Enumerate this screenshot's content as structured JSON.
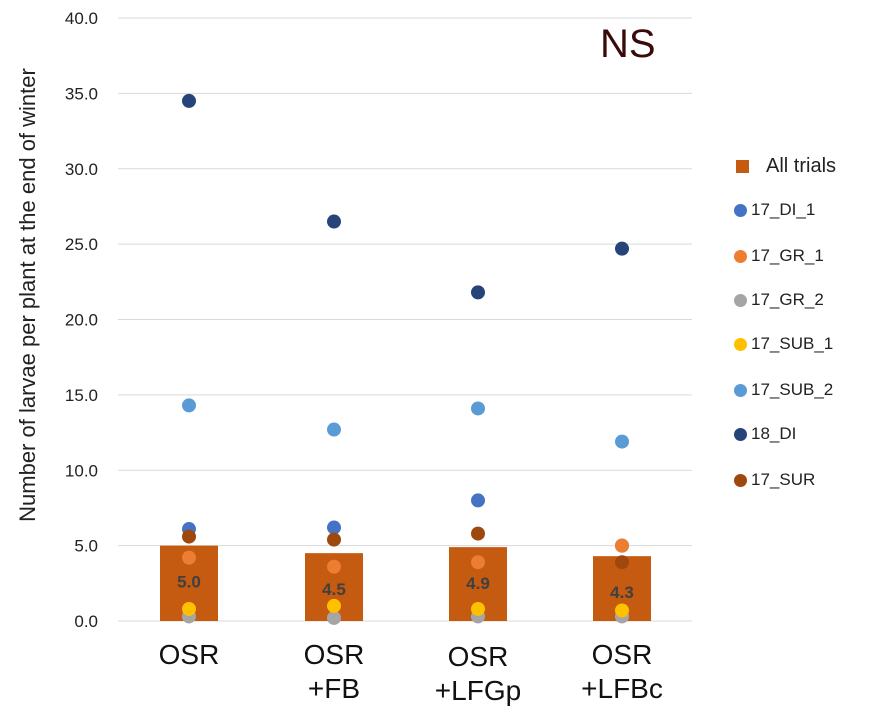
{
  "chart_data": {
    "type": "bar",
    "title": "",
    "annotation": "NS",
    "ylabel": "Number of larvae per plant at the end of winter",
    "ylim": [
      0,
      40
    ],
    "yticks": [
      "0.0",
      "5.0",
      "10.0",
      "15.0",
      "20.0",
      "25.0",
      "30.0",
      "35.0",
      "40.0"
    ],
    "grid": true,
    "legend_position": "right",
    "categories": [
      {
        "line1": "OSR",
        "line2": ""
      },
      {
        "line1": "OSR",
        "line2": "+FB"
      },
      {
        "line1": "OSR",
        "line2": "+LFGp"
      },
      {
        "line1": "OSR",
        "line2": "+LFBc"
      }
    ],
    "bar_series": {
      "name": "All trials",
      "color": "#c55a11",
      "values": [
        5.0,
        4.5,
        4.9,
        4.3
      ],
      "labels": [
        "5.0",
        "4.5",
        "4.9",
        "4.3"
      ]
    },
    "point_series": [
      {
        "name": "17_DI_1",
        "color": "#4472c4",
        "values": [
          6.1,
          6.2,
          8.0,
          5.0
        ]
      },
      {
        "name": "17_GR_1",
        "color": "#ed7d31",
        "values": [
          4.2,
          3.6,
          3.9,
          5.0
        ]
      },
      {
        "name": "17_GR_2",
        "color": "#a5a5a5",
        "values": [
          0.3,
          0.2,
          0.3,
          0.3
        ]
      },
      {
        "name": "17_SUB_1",
        "color": "#ffc000",
        "values": [
          0.8,
          1.0,
          0.8,
          0.7
        ]
      },
      {
        "name": "17_SUB_2",
        "color": "#5b9bd5",
        "values": [
          14.3,
          12.7,
          14.1,
          11.9
        ]
      },
      {
        "name": "18_DI",
        "color": "#264478",
        "values": [
          34.5,
          26.5,
          21.8,
          24.7
        ]
      },
      {
        "name": "17_SUR",
        "color": "#9e480e",
        "values": [
          5.6,
          5.4,
          5.8,
          3.9
        ]
      }
    ]
  }
}
